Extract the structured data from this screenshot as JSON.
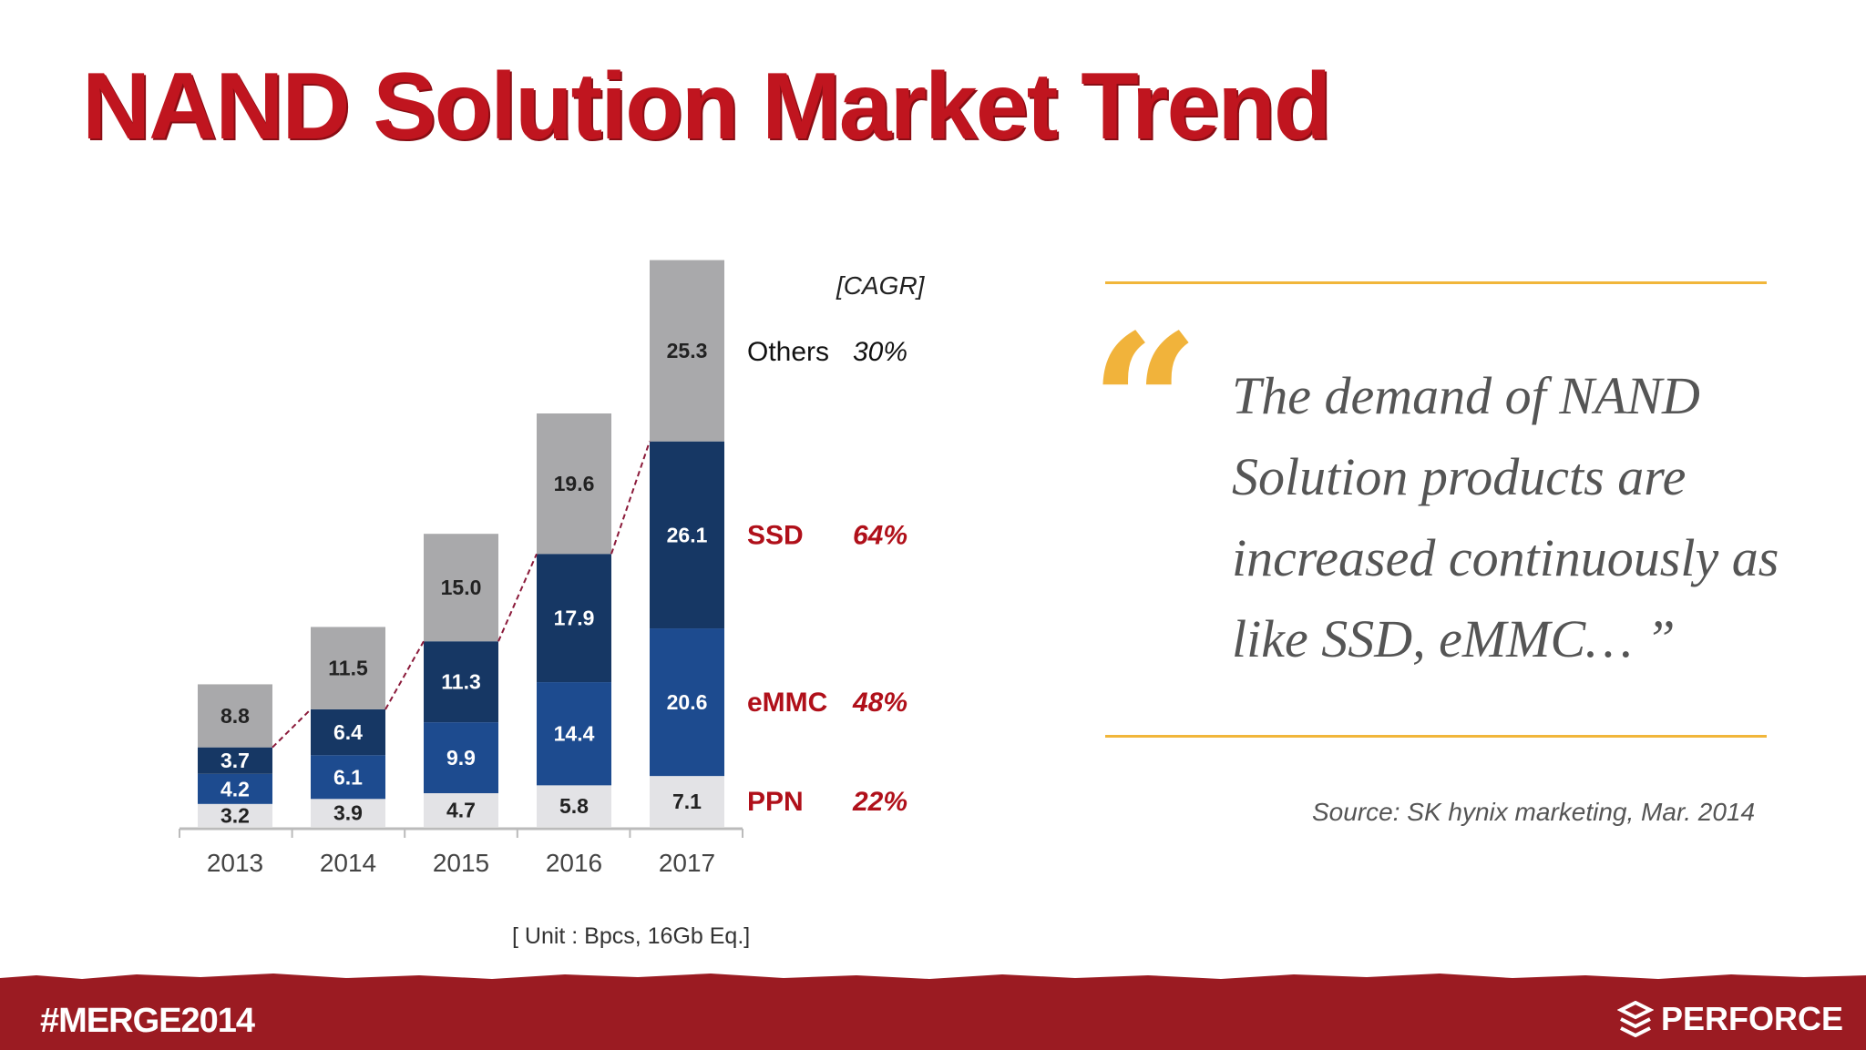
{
  "title": "NAND Solution Market Trend",
  "chart_data": {
    "type": "bar",
    "stacked": true,
    "categories": [
      "2013",
      "2014",
      "2015",
      "2016",
      "2017"
    ],
    "series": [
      {
        "name": "PPN",
        "cagr": "22%",
        "color": "#e3e3e6",
        "label_color": "#222222",
        "values": [
          3.2,
          3.9,
          4.7,
          5.8,
          7.1
        ]
      },
      {
        "name": "eMMC",
        "cagr": "48%",
        "color": "#1d4b8f",
        "label_color": "#ffffff",
        "values": [
          4.2,
          6.1,
          9.9,
          14.4,
          20.6
        ]
      },
      {
        "name": "SSD",
        "cagr": "64%",
        "color": "#163764",
        "label_color": "#ffffff",
        "values": [
          3.7,
          6.4,
          11.3,
          17.9,
          26.1
        ]
      },
      {
        "name": "Others",
        "cagr": "30%",
        "color": "#a9a9ab",
        "label_color": "#222222",
        "values": [
          8.8,
          11.5,
          15.0,
          19.6,
          25.3
        ]
      }
    ],
    "legend_header": "[CAGR]",
    "unit_note": "[ Unit : Bpcs, 16Gb Eq.]",
    "ylim": [
      0,
      82
    ]
  },
  "quote": {
    "mark": "“",
    "text": "The demand of NAND Solution products are increased continuously as like SSD, eMMC… ”",
    "source": "Source: SK hynix marketing, Mar. 2014"
  },
  "footer": {
    "hashtag": "#MERGE2014",
    "brand": "PERFORCE"
  },
  "colors": {
    "title": "#c0151f",
    "accent_line": "#f1b63a",
    "footer": "#9b1b22",
    "legend_red": "#b0101a"
  }
}
